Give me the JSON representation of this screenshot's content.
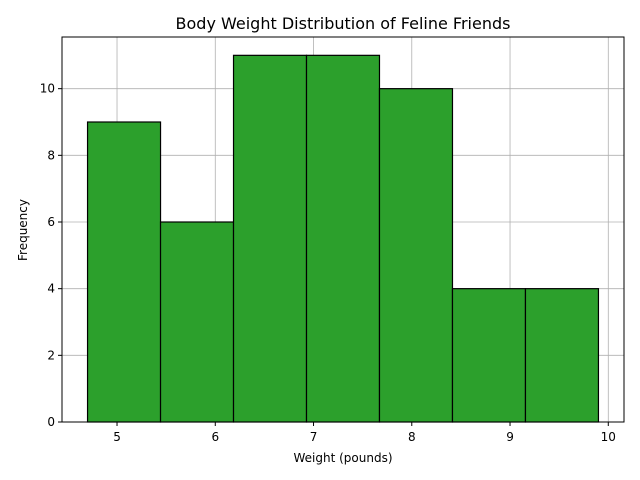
{
  "chart_data": {
    "type": "bar",
    "title": "Body Weight Distribution of Feline Friends",
    "xlabel": "Weight (pounds)",
    "ylabel": "Frequency",
    "bins": [
      [
        4.7,
        5.4429
      ],
      [
        5.4429,
        6.1857
      ],
      [
        6.1857,
        6.9286
      ],
      [
        6.9286,
        7.6714
      ],
      [
        7.6714,
        8.4143
      ],
      [
        8.4143,
        9.1571
      ],
      [
        9.1571,
        9.9
      ]
    ],
    "values": [
      9,
      6,
      11,
      11,
      10,
      4,
      4
    ],
    "xlim": [
      4.44,
      10.16
    ],
    "ylim": [
      0,
      11.55
    ],
    "xticks": [
      5,
      6,
      7,
      8,
      9,
      10
    ],
    "yticks": [
      0,
      2,
      4,
      6,
      8,
      10
    ],
    "grid": true,
    "bar_color": "#2ca02c",
    "edge_color": "#000000"
  }
}
